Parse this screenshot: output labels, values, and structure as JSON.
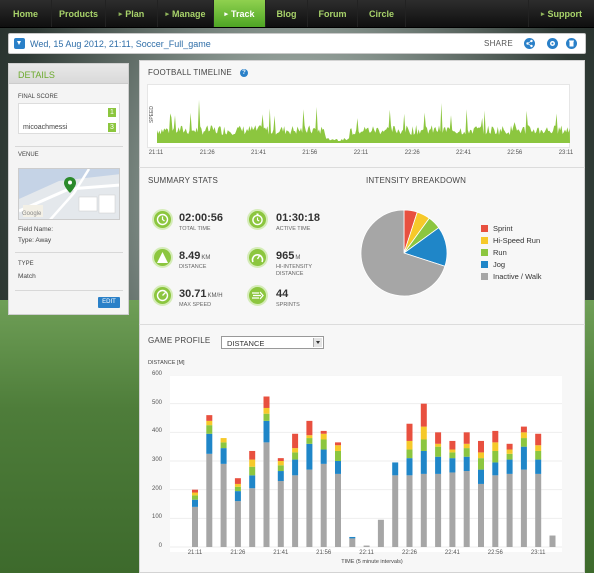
{
  "nav": {
    "items": [
      {
        "label": "Home",
        "caret": false
      },
      {
        "label": "Products",
        "caret": false
      },
      {
        "label": "Plan",
        "caret": true
      },
      {
        "label": "Manage",
        "caret": true
      },
      {
        "label": "Track",
        "caret": true,
        "active": true
      },
      {
        "label": "Blog",
        "caret": false
      },
      {
        "label": "Forum",
        "caret": false
      },
      {
        "label": "Circle",
        "caret": false
      }
    ],
    "support": "Support"
  },
  "header": {
    "session_title": "Wed, 15 Aug 2012, 21:11, Soccer_Full_game",
    "share_label": "SHARE"
  },
  "details": {
    "title": "DETAILS",
    "final_score_label": "FINAL SCORE",
    "score_team1": "1",
    "player": "micoachmessi",
    "score_team2": "3",
    "venue_label": "VENUE",
    "field_name": "Field Name:",
    "type_line": "Type: Away",
    "type_label": "TYPE",
    "type_value": "Match",
    "edit_label": "EDIT",
    "map_watermark": "Google"
  },
  "timeline": {
    "title": "FOOTBALL TIMELINE",
    "help": "?",
    "ylabel": "SPEED",
    "ticks": [
      "21:11",
      "21:26",
      "21:41",
      "21:56",
      "22:11",
      "22:26",
      "22:41",
      "22:56",
      "23:11"
    ]
  },
  "summary": {
    "title": "SUMMARY STATS",
    "stats": [
      {
        "value": "02:00:56",
        "unit": "",
        "label": "TOTAL TIME"
      },
      {
        "value": "01:30:18",
        "unit": "",
        "label": "ACTIVE TIME"
      },
      {
        "value": "8.49",
        "unit": "KM",
        "label": "DISTANCE"
      },
      {
        "value": "965",
        "unit": "M",
        "label": "HI-INTENSITY DISTANCE"
      },
      {
        "value": "30.71",
        "unit": "KM/H",
        "label": "MAX SPEED"
      },
      {
        "value": "44",
        "unit": "",
        "label": "SPRINTS"
      }
    ]
  },
  "intensity": {
    "title": "INTENSITY BREAKDOWN",
    "legend": [
      {
        "label": "Sprint",
        "color": "#e8503f"
      },
      {
        "label": "Hi-Speed Run",
        "color": "#f6c92a"
      },
      {
        "label": "Run",
        "color": "#8cc63f"
      },
      {
        "label": "Jog",
        "color": "#1f86c8"
      },
      {
        "label": "Inactive / Walk",
        "color": "#a6a6a6"
      }
    ]
  },
  "game_profile": {
    "title": "GAME PROFILE",
    "select_value": "DISTANCE"
  },
  "chart_data": {
    "type": "bar",
    "ylabel": "DISTANCE [M]",
    "xlabel": "TIME (5 minute intervals)",
    "ylim": [
      0,
      600
    ],
    "yticks": [
      0,
      100,
      200,
      300,
      400,
      500,
      600
    ],
    "xtick_labels": [
      "21:11",
      "21:26",
      "21:41",
      "21:56",
      "22:11",
      "22:26",
      "22:41",
      "22:56",
      "23:11"
    ],
    "series": [
      {
        "name": "Inactive / Walk",
        "color": "#a6a6a6",
        "values": [
          140,
          325,
          290,
          160,
          205,
          365,
          230,
          250,
          270,
          290,
          255,
          30,
          5,
          95,
          250,
          250,
          255,
          255,
          260,
          265,
          220,
          250,
          255,
          270,
          255,
          40
        ]
      },
      {
        "name": "Jog",
        "color": "#1f86c8",
        "values": [
          25,
          70,
          55,
          35,
          45,
          75,
          35,
          55,
          90,
          50,
          45,
          5,
          0,
          0,
          45,
          60,
          80,
          60,
          50,
          50,
          50,
          45,
          50,
          80,
          50,
          0
        ]
      },
      {
        "name": "Run",
        "color": "#8cc63f",
        "values": [
          15,
          30,
          20,
          15,
          30,
          25,
          20,
          25,
          20,
          35,
          35,
          0,
          0,
          0,
          0,
          30,
          40,
          35,
          20,
          30,
          40,
          40,
          20,
          30,
          30,
          0
        ]
      },
      {
        "name": "Hi-Speed Run",
        "color": "#f6c92a",
        "values": [
          10,
          15,
          15,
          10,
          25,
          20,
          15,
          15,
          10,
          20,
          20,
          0,
          0,
          0,
          0,
          30,
          45,
          10,
          10,
          15,
          20,
          30,
          15,
          20,
          20,
          0
        ]
      },
      {
        "name": "Sprint",
        "color": "#e8503f",
        "values": [
          10,
          20,
          0,
          20,
          30,
          40,
          10,
          50,
          50,
          10,
          10,
          0,
          0,
          0,
          0,
          60,
          80,
          40,
          30,
          40,
          40,
          40,
          20,
          20,
          40,
          0
        ]
      }
    ]
  },
  "pie_data": {
    "values": [
      5,
      5,
      5,
      15,
      70
    ]
  }
}
